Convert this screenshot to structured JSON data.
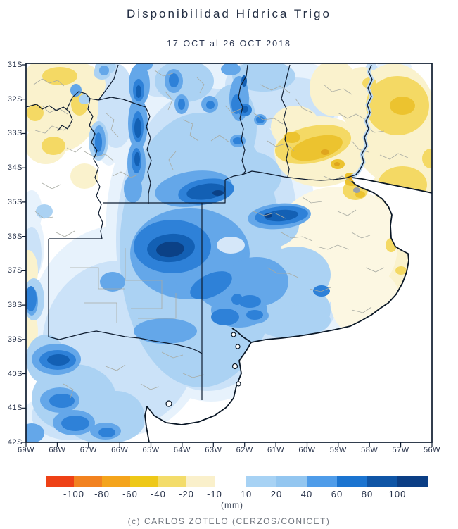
{
  "title": "Disponibilidad Hídrica Trigo",
  "subtitle": "17 OCT al 26 OCT 2018",
  "credit": "(c) CARLOS ZOTELO (CERZOS/CONICET)",
  "map": {
    "lat_ticks": [
      "31S",
      "32S",
      "33S",
      "34S",
      "35S",
      "36S",
      "37S",
      "38S",
      "39S",
      "40S",
      "41S",
      "42S"
    ],
    "lon_ticks": [
      "69W",
      "68W",
      "67W",
      "66W",
      "65W",
      "64W",
      "63W",
      "62W",
      "61W",
      "60W",
      "59W",
      "58W",
      "57W",
      "56W"
    ]
  },
  "legend": {
    "unit_label": "(mm)",
    "negative": [
      {
        "label": "-100",
        "color": "#ee4116"
      },
      {
        "label": "-80",
        "color": "#f28220"
      },
      {
        "label": "-60",
        "color": "#f4a41c"
      },
      {
        "label": "-40",
        "color": "#eec818"
      },
      {
        "label": "-20",
        "color": "#f3dc6a"
      },
      {
        "label": "-10",
        "color": "#faf0cb"
      }
    ],
    "positive": [
      {
        "label": "10",
        "color": "#a7d2f4"
      },
      {
        "label": "20",
        "color": "#93c6f0"
      },
      {
        "label": "40",
        "color": "#4f9ce9"
      },
      {
        "label": "60",
        "color": "#1b74d0"
      },
      {
        "label": "80",
        "color": "#0f55a6"
      },
      {
        "label": "100",
        "color": "#0b3e85"
      }
    ]
  }
}
